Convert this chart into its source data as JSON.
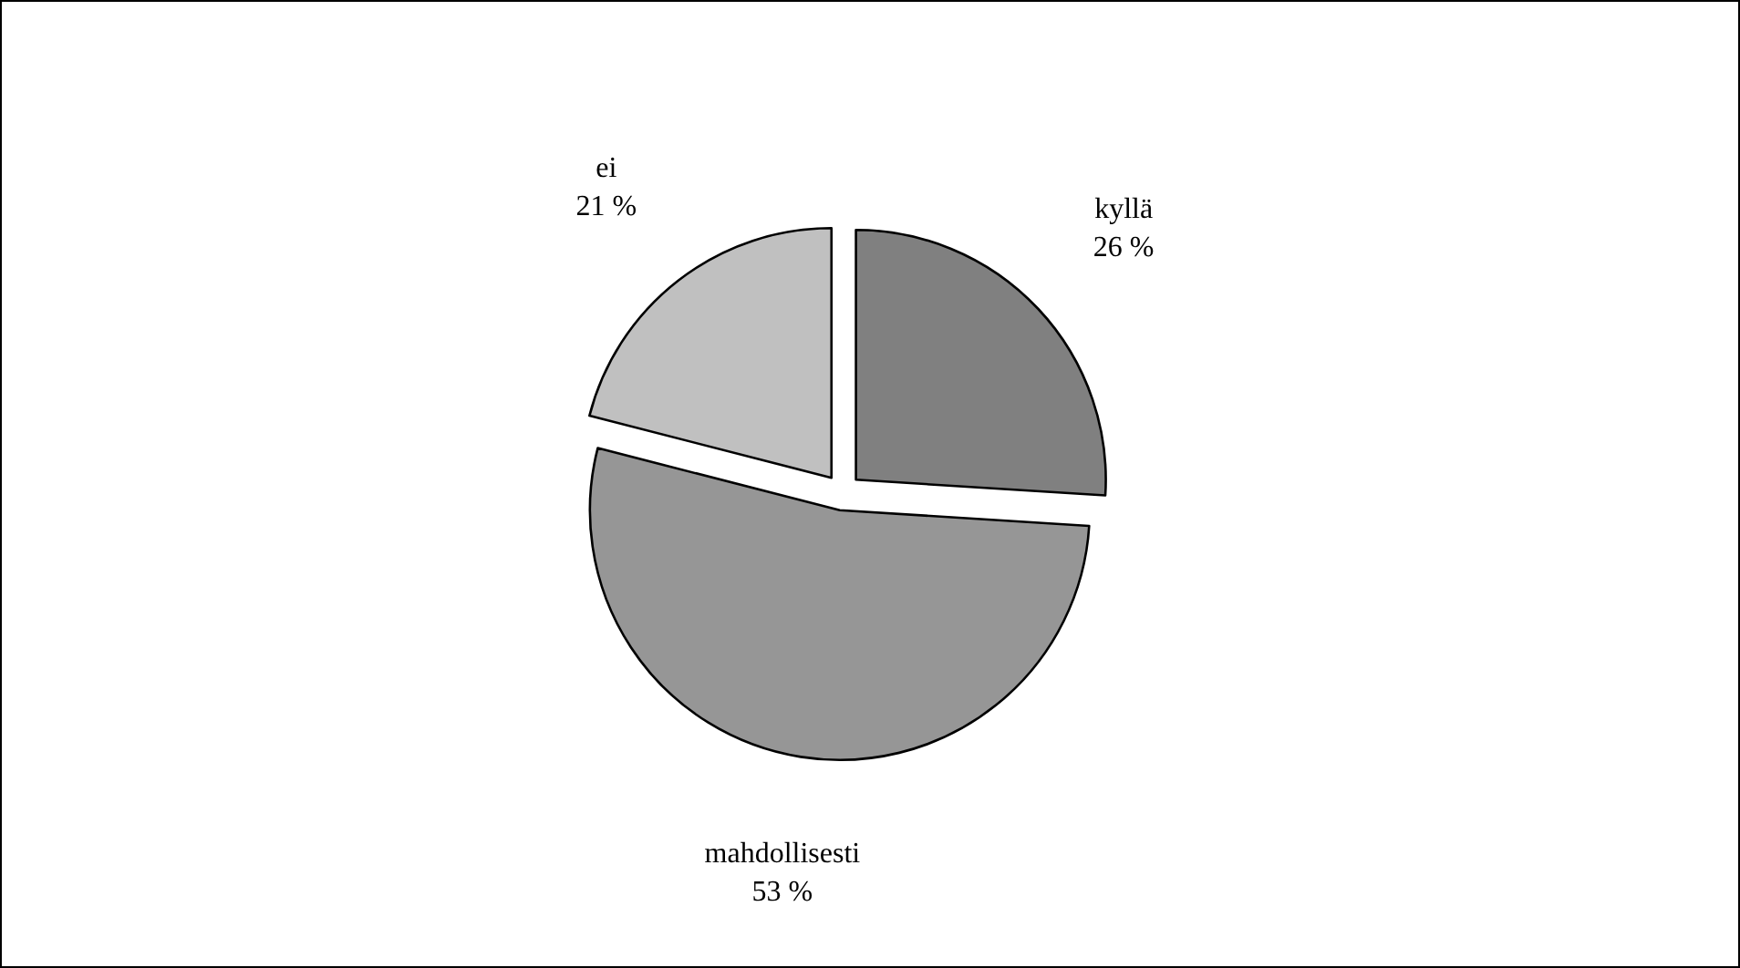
{
  "chart_data": {
    "type": "pie",
    "categories": [
      "kyllä",
      "mahdollisesti",
      "ei"
    ],
    "values": [
      26,
      53,
      21
    ],
    "value_labels": [
      "26 %",
      "53 %",
      "21 %"
    ],
    "colors": [
      "#808080",
      "#969696",
      "#c0c0c0"
    ],
    "legend": false
  }
}
